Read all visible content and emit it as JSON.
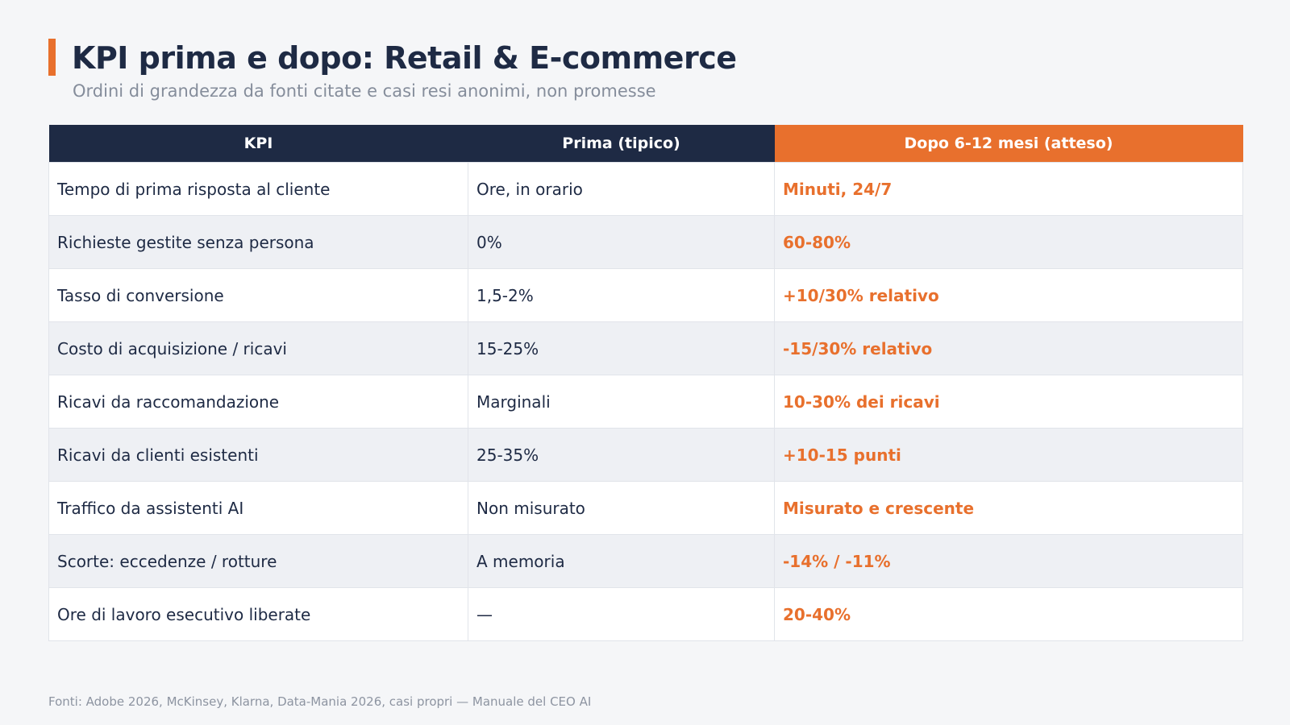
{
  "title": "KPI prima e dopo: Retail & E-commerce",
  "subtitle": "Ordini di grandezza da fonti citate e casi resi anonimi, non promesse",
  "table": {
    "headers": [
      "KPI",
      "Prima (tipico)",
      "Dopo 6-12 mesi (atteso)"
    ],
    "rows": [
      [
        "Tempo di prima risposta al cliente",
        "Ore, in orario",
        "Minuti, 24/7"
      ],
      [
        "Richieste gestite senza persona",
        "0%",
        "60-80%"
      ],
      [
        "Tasso di conversione",
        "1,5-2%",
        "+10/30% relativo"
      ],
      [
        "Costo di acquisizione / ricavi",
        "15-25%",
        "-15/30% relativo"
      ],
      [
        "Ricavi da raccomandazione",
        "Marginali",
        "10-30% dei ricavi"
      ],
      [
        "Ricavi da clienti esistenti",
        "25-35%",
        "+10-15 punti"
      ],
      [
        "Traffico da assistenti AI",
        "Non misurato",
        "Misurato e crescente"
      ],
      [
        "Scorte: eccedenze / rotture",
        "A memoria",
        "-14% / -11%"
      ],
      [
        "Ore di lavoro esecutivo liberate",
        "—",
        "20-40%"
      ]
    ]
  },
  "footer": "Fonti: Adobe 2026, McKinsey, Klarna, Data-Mania 2026, casi propri — Manuale del CEO AI",
  "colors": {
    "accent": "#e8702d",
    "navy": "#1e2a44",
    "background": "#f5f6f8"
  }
}
